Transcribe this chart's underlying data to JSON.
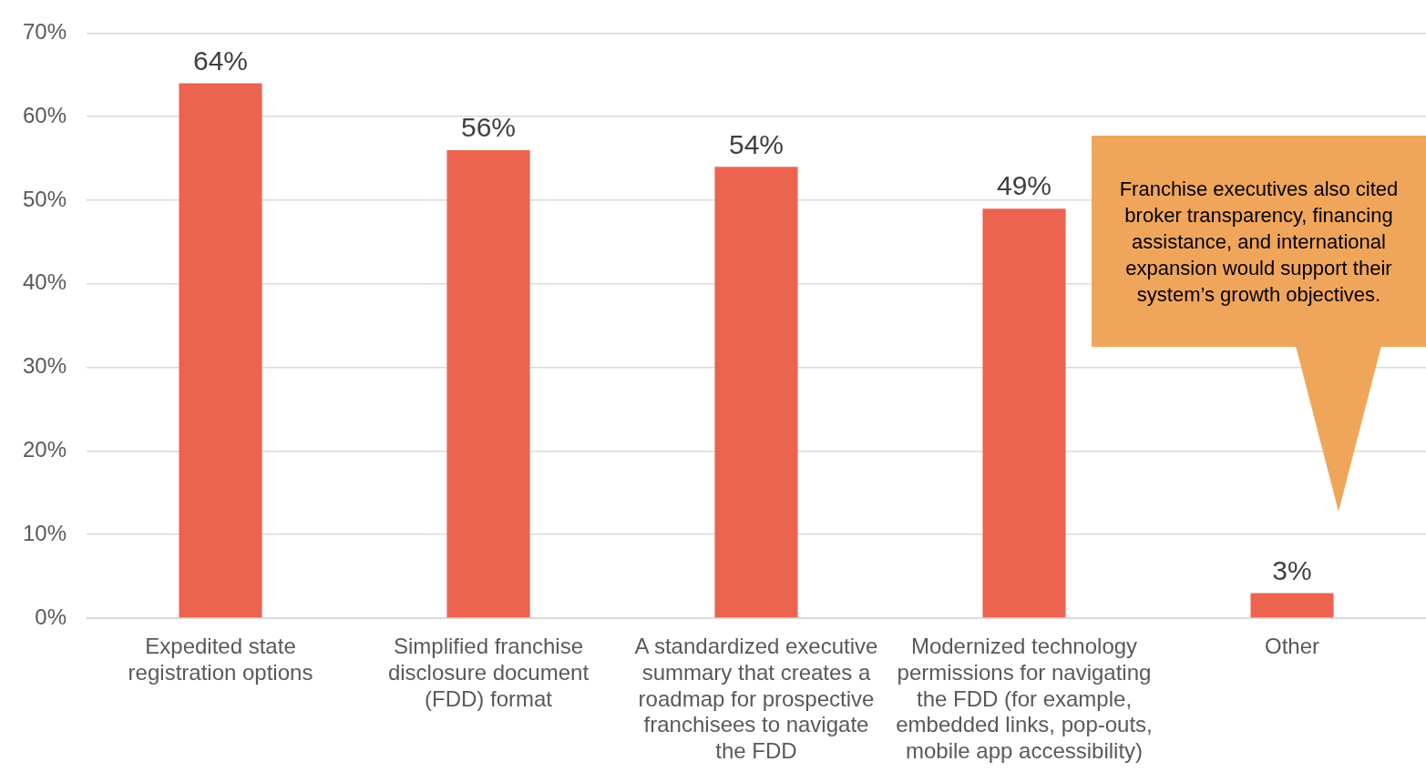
{
  "chart_data": {
    "type": "bar",
    "categories": [
      "Expedited state registration options",
      "Simplified franchise disclosure document (FDD) format",
      "A standardized executive summary that creates a roadmap for prospective franchisees to navigate the FDD",
      "Modernized technology permissions for navigating the FDD (for example, embedded links, pop-outs, mobile app accessibility)",
      "Other"
    ],
    "values": [
      64,
      56,
      54,
      49,
      3
    ],
    "value_labels": [
      "64%",
      "56%",
      "54%",
      "49%",
      "3%"
    ],
    "color": "#ec6350",
    "ylim": [
      0,
      70
    ],
    "yticks": [
      {
        "value": 0,
        "label": "0%"
      },
      {
        "value": 10,
        "label": "10%"
      },
      {
        "value": 20,
        "label": "20%"
      },
      {
        "value": 30,
        "label": "30%"
      },
      {
        "value": 40,
        "label": "40%"
      },
      {
        "value": 50,
        "label": "50%"
      },
      {
        "value": 60,
        "label": "60%"
      },
      {
        "value": 70,
        "label": "70%"
      }
    ],
    "grid": "y",
    "legend": false,
    "annotations": [
      "Franchise executives also cited broker transparency, financing assistance, and international expansion would support their system’s growth objectives."
    ]
  }
}
